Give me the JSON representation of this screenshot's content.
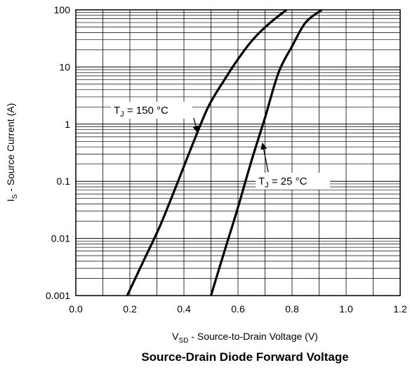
{
  "chart_data": {
    "type": "line",
    "title": "Source-Drain Diode Forward Voltage",
    "xlabel": "V_SD - Source-to-Drain Voltage (V)",
    "xlabel_main": "V",
    "xlabel_sub": "SD",
    "xlabel_rest": " - Source-to-Drain Voltage (V)",
    "ylabel": "I_S - Source Current (A)",
    "ylabel_main": "I",
    "ylabel_sub": "S",
    "ylabel_rest": " - Source Current (A)",
    "xlim": [
      0.0,
      1.2
    ],
    "ylim": [
      0.001,
      100
    ],
    "yscale": "log",
    "grid": true,
    "x_ticks": [
      {
        "value": 0.0,
        "label": "0.0"
      },
      {
        "value": 0.2,
        "label": "0.2"
      },
      {
        "value": 0.4,
        "label": "0.4"
      },
      {
        "value": 0.6,
        "label": "0.6"
      },
      {
        "value": 0.8,
        "label": "0.8"
      },
      {
        "value": 1.0,
        "label": "1.0"
      },
      {
        "value": 1.2,
        "label": "1.2"
      }
    ],
    "y_ticks": [
      {
        "value": 0.001,
        "label": "0.001"
      },
      {
        "value": 0.01,
        "label": "0.01"
      },
      {
        "value": 0.1,
        "label": "0.1"
      },
      {
        "value": 1,
        "label": "1"
      },
      {
        "value": 10,
        "label": "10"
      },
      {
        "value": 100,
        "label": "100"
      }
    ],
    "series": [
      {
        "name": "T_J = 150 °C",
        "x": [
          0.19,
          0.25,
          0.31,
          0.37,
          0.43,
          0.49,
          0.55,
          0.61,
          0.66,
          0.72,
          0.78
        ],
        "y": [
          0.001,
          0.004,
          0.016,
          0.08,
          0.42,
          2.0,
          6.0,
          16,
          32,
          60,
          100
        ]
      },
      {
        "name": "T_J = 25 °C",
        "x": [
          0.5,
          0.55,
          0.6,
          0.65,
          0.7,
          0.75,
          0.8,
          0.85,
          0.91
        ],
        "y": [
          0.001,
          0.006,
          0.035,
          0.23,
          1.3,
          8.0,
          23,
          60,
          100
        ]
      }
    ],
    "annotations": [
      {
        "main": "T",
        "sub": "J",
        "rest": " = 150 °C",
        "series": "T_J = 150 °C",
        "at_x": 0.45,
        "at_y": 0.7
      },
      {
        "main": "T",
        "sub": "J",
        "rest": " = 25 °C",
        "series": "T_J = 25 °C",
        "at_x": 0.69,
        "at_y": 0.48
      }
    ]
  }
}
